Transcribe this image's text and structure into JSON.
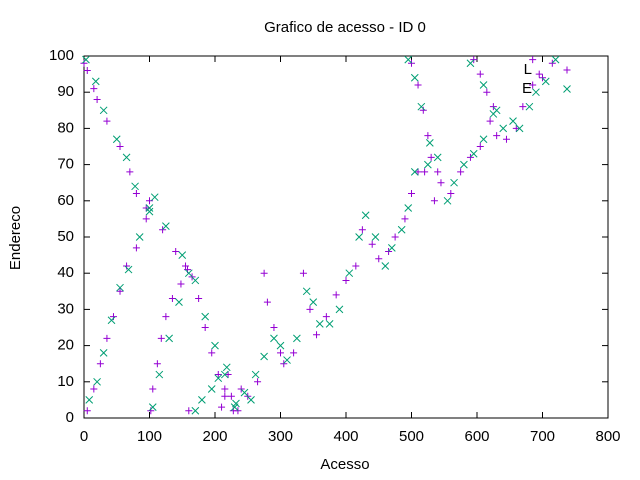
{
  "chart_data": {
    "type": "scatter",
    "title": "Grafico de acesso - ID 0",
    "xlabel": "Acesso",
    "ylabel": "Endereco",
    "xlim": [
      0,
      800
    ],
    "ylim": [
      0,
      100
    ],
    "xticks": [
      0,
      100,
      200,
      300,
      400,
      500,
      600,
      700,
      800
    ],
    "yticks": [
      0,
      10,
      20,
      30,
      40,
      50,
      60,
      70,
      80,
      90,
      100
    ],
    "legend": "top-right",
    "series": [
      {
        "name": "L",
        "color": "#9400d3",
        "marker": "+",
        "x": [
          0,
          5,
          15,
          20,
          35,
          55,
          70,
          80,
          95,
          120,
          140,
          155,
          165,
          175,
          185,
          195,
          205,
          215,
          228,
          5,
          15,
          25,
          35,
          45,
          55,
          65,
          80,
          95,
          100,
          102,
          105,
          112,
          118,
          125,
          135,
          148,
          158,
          160,
          210,
          215,
          220,
          225,
          235,
          240,
          250,
          265,
          275,
          280,
          290,
          300,
          305,
          320,
          335,
          345,
          355,
          370,
          385,
          400,
          415,
          425,
          440,
          450,
          465,
          475,
          490,
          500,
          510,
          520,
          535,
          545,
          560,
          575,
          590,
          605,
          620,
          630,
          645,
          660,
          670,
          685,
          700,
          715,
          500,
          510,
          518,
          525,
          530,
          540,
          595,
          605,
          615,
          625,
          685,
          695
        ],
        "values": [
          98,
          96,
          91,
          88,
          82,
          75,
          68,
          62,
          58,
          52,
          46,
          42,
          39,
          33,
          25,
          18,
          12,
          6,
          2,
          2,
          8,
          15,
          22,
          28,
          35,
          42,
          47,
          55,
          60,
          2,
          8,
          15,
          22,
          28,
          33,
          37,
          41,
          2,
          3,
          8,
          12,
          6,
          2,
          8,
          6,
          10,
          40,
          32,
          25,
          18,
          15,
          18,
          40,
          30,
          23,
          28,
          34,
          38,
          42,
          52,
          48,
          44,
          46,
          50,
          55,
          62,
          68,
          68,
          60,
          65,
          62,
          68,
          72,
          75,
          82,
          78,
          77,
          80,
          86,
          92,
          94,
          98,
          98,
          92,
          85,
          78,
          72,
          68,
          99,
          95,
          90,
          86,
          99,
          95
        ]
      },
      {
        "name": "E",
        "color": "#009e73",
        "marker": "x",
        "x": [
          3,
          18,
          30,
          50,
          65,
          78,
          100,
          125,
          150,
          170,
          185,
          200,
          215,
          230,
          8,
          20,
          30,
          42,
          55,
          68,
          85,
          100,
          108,
          105,
          115,
          130,
          145,
          160,
          170,
          180,
          195,
          205,
          218,
          232,
          245,
          255,
          262,
          275,
          290,
          300,
          310,
          325,
          340,
          350,
          360,
          375,
          390,
          405,
          420,
          430,
          445,
          460,
          470,
          485,
          495,
          505,
          525,
          540,
          555,
          565,
          580,
          595,
          610,
          625,
          640,
          655,
          665,
          680,
          690,
          705,
          720,
          495,
          505,
          515,
          528,
          590,
          610,
          630
        ],
        "values": [
          99,
          93,
          85,
          77,
          72,
          64,
          58,
          53,
          45,
          38,
          28,
          20,
          12,
          3,
          5,
          10,
          18,
          27,
          36,
          41,
          50,
          57,
          61,
          3,
          12,
          22,
          32,
          40,
          2,
          5,
          8,
          11,
          14,
          4,
          7,
          5,
          12,
          17,
          22,
          20,
          16,
          22,
          35,
          32,
          26,
          26,
          30,
          40,
          50,
          56,
          50,
          42,
          47,
          52,
          58,
          68,
          70,
          72,
          60,
          65,
          70,
          73,
          77,
          84,
          80,
          82,
          80,
          86,
          90,
          93,
          99,
          99,
          94,
          86,
          76,
          98,
          92,
          85
        ]
      }
    ]
  }
}
